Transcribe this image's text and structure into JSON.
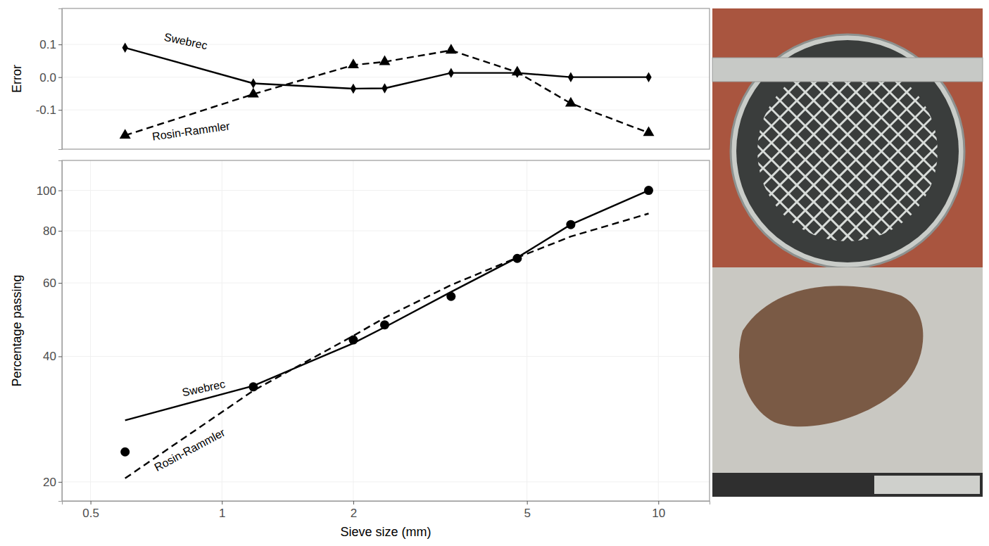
{
  "chart_data": [
    {
      "type": "line",
      "y_label": "Error",
      "log": "x",
      "grid": true,
      "tick_labels": "y",
      "x": [
        0.6,
        1.18,
        2.0,
        2.36,
        3.35,
        4.75,
        6.3,
        9.5
      ],
      "xlim": [
        0.43,
        13.1
      ],
      "ylim": [
        -0.22,
        0.21
      ],
      "yticks": [
        -0.1,
        {
          "value": 0,
          "label": "0.0"
        },
        0.1
      ],
      "series": [
        {
          "name": "Swebrec",
          "color": "#000000",
          "marker": "diamond",
          "line_style": "solid",
          "values": [
            0.09,
            -0.019,
            -0.035,
            -0.034,
            0.013,
            0.013,
            0.0,
            0.0
          ]
        },
        {
          "name": "Rosin-Rammler",
          "color": "#000000",
          "marker": "triangle",
          "line_style": "dashed",
          "values": [
            -0.178,
            -0.052,
            0.037,
            0.047,
            0.082,
            0.015,
            -0.08,
            -0.17
          ]
        }
      ]
    },
    {
      "type": "line",
      "x_label": "Sieve size (mm)",
      "y_label": "Percentage passing",
      "log": true,
      "grid": true,
      "x": [
        0.6,
        1.18,
        2.0,
        2.36,
        3.35,
        4.75,
        6.3,
        9.5
      ],
      "xlim": [
        0.43,
        13.1
      ],
      "ylim": [
        18,
        118
      ],
      "xticks": [
        0.5,
        1,
        2,
        5,
        10
      ],
      "yticks": [
        20,
        40,
        60,
        80,
        100
      ],
      "series": [
        {
          "type": "scatter",
          "color": "#000000",
          "marker": "circle",
          "values": [
            23.6,
            33.8,
            43.8,
            47.6,
            55.7,
            68.7,
            82.8,
            100
          ]
        },
        {
          "name": "Swebrec",
          "color": "#000000",
          "line_style": "solid",
          "values": [
            28.1,
            34.0,
            43.0,
            47.0,
            57.1,
            69.0,
            82.8,
            100
          ]
        },
        {
          "name": "Rosin-Rammler",
          "color": "#000000",
          "line_style": "dashed",
          "values": [
            20.4,
            33.1,
            44.8,
            49.5,
            59.3,
            69.0,
            77.5,
            88.0
          ]
        }
      ]
    }
  ]
}
